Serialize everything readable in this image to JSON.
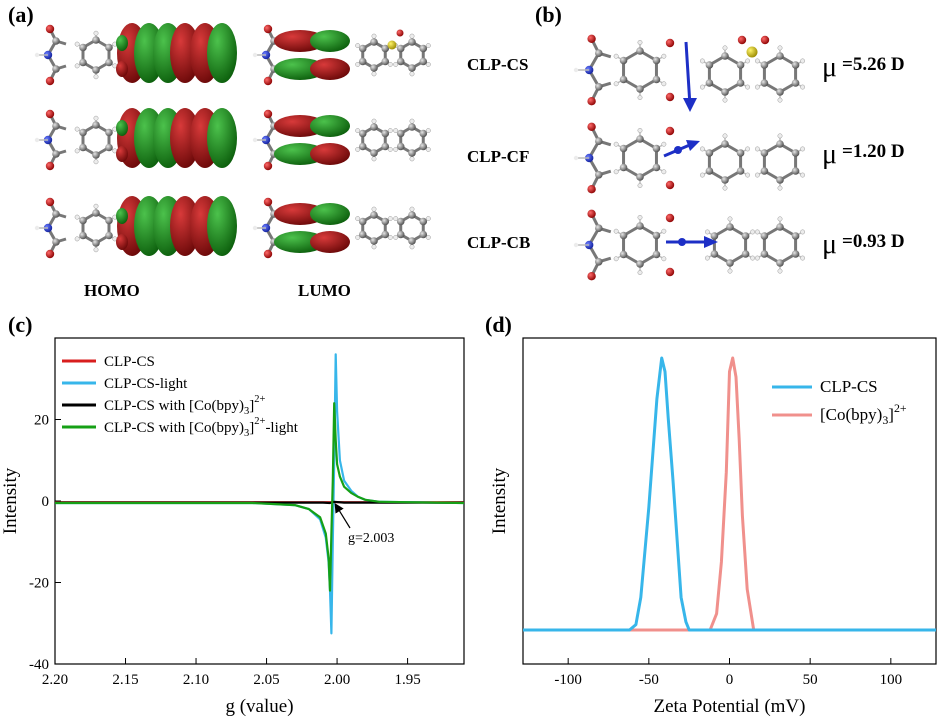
{
  "panels": {
    "a": {
      "label": "(a)",
      "col_homo": "HOMO",
      "col_lumo": "LUMO"
    },
    "b": {
      "label": "(b)",
      "rows": [
        {
          "name": "CLP-CS",
          "mu": "=5.26 D"
        },
        {
          "name": "CLP-CF",
          "mu": "=1.20 D"
        },
        {
          "name": "CLP-CB",
          "mu": "=0.93 D"
        }
      ],
      "mu_symbol": "μ"
    },
    "c": {
      "label": "(c)"
    },
    "d": {
      "label": "(d)"
    }
  },
  "colors": {
    "red": "#d81e1e",
    "lightblue": "#37b6ea",
    "black": "#000000",
    "green": "#16a016",
    "salmon": "#f0908c",
    "orbital_red": "#9a1010",
    "orbital_green": "#1e8a1e",
    "arrow_blue": "#1d2fc6"
  },
  "chart_data": [
    {
      "type": "line",
      "panel": "c",
      "xlabel": "g (value)",
      "ylabel": "Intensity",
      "xlim": [
        2.2,
        1.91
      ],
      "xreversed": true,
      "ylim": [
        -40,
        40
      ],
      "xticks": [
        2.2,
        2.15,
        2.1,
        2.05,
        2.0,
        1.95
      ],
      "xtick_labels": [
        "2.20",
        "2.15",
        "2.10",
        "2.05",
        "2.00",
        "1.95"
      ],
      "yticks": [
        -40,
        -20,
        0,
        20
      ],
      "ytick_labels": [
        "-40",
        "-20",
        "0",
        "20"
      ],
      "annotation": {
        "text": "g=2.003",
        "x": 2.003,
        "y": 0
      },
      "legend_position": "top-left",
      "series": [
        {
          "name": "CLP-CS",
          "color_key": "red",
          "x": [
            2.2,
            2.03,
            2.01,
            2.005,
            2.002,
            1.995,
            1.98,
            1.91
          ],
          "y": [
            -0.3,
            -0.3,
            -0.3,
            -0.3,
            -0.3,
            -0.3,
            -0.3,
            -0.3
          ]
        },
        {
          "name": "CLP-CS-light",
          "color_key": "lightblue",
          "x": [
            2.2,
            2.06,
            2.03,
            2.02,
            2.012,
            2.008,
            2.006,
            2.005,
            2.004,
            2.003,
            2.002,
            2.001,
            2.0,
            1.998,
            1.995,
            1.99,
            1.985,
            1.98,
            1.97,
            1.91
          ],
          "y": [
            -0.5,
            -0.5,
            -1.0,
            -2.0,
            -4.5,
            -9.0,
            -15.0,
            -22.0,
            -32.5,
            -10.0,
            10.0,
            36.0,
            22.0,
            10.0,
            5.0,
            2.5,
            1.0,
            0.3,
            -0.2,
            -0.5
          ]
        },
        {
          "name": "CLP-CS with [Co(bpy)3]2+",
          "color_key": "black",
          "x": [
            2.2,
            2.03,
            2.01,
            2.005,
            2.002,
            1.995,
            1.98,
            1.91
          ],
          "y": [
            -0.4,
            -0.4,
            -0.4,
            -0.5,
            -0.2,
            -0.4,
            -0.4,
            -0.4
          ]
        },
        {
          "name": "CLP-CS with [Co(bpy)3]2+-light",
          "color_key": "green",
          "x": [
            2.2,
            2.06,
            2.03,
            2.02,
            2.012,
            2.008,
            2.006,
            2.005,
            2.004,
            2.003,
            2.002,
            2.001,
            2.0,
            1.998,
            1.995,
            1.99,
            1.985,
            1.98,
            1.97,
            1.91
          ],
          "y": [
            -0.5,
            -0.5,
            -1.0,
            -2.0,
            -4.0,
            -8.0,
            -14.0,
            -22.0,
            -8.0,
            5.0,
            24.0,
            15.0,
            9.0,
            6.0,
            3.5,
            2.0,
            1.0,
            0.3,
            -0.2,
            -0.5
          ]
        }
      ],
      "legend": [
        {
          "text": "CLP-CS",
          "color_key": "red"
        },
        {
          "text": "CLP-CS-light",
          "color_key": "lightblue"
        },
        {
          "text": "CLP-CS with [Co(bpy)",
          "sub": "3",
          "sup": "2+",
          "tail": "",
          "color_key": "black"
        },
        {
          "text": "CLP-CS with [Co(bpy)",
          "sub": "3",
          "sup": "2+",
          "tail": "-light",
          "color_key": "green"
        }
      ]
    },
    {
      "type": "line",
      "panel": "d",
      "xlabel": "Zeta Potential (mV)",
      "ylabel": "Intensity",
      "xlim": [
        -128,
        128
      ],
      "ylim": [
        0,
        1.2
      ],
      "xticks": [
        -100,
        -50,
        0,
        50,
        100
      ],
      "xtick_labels": [
        "-100",
        "-50",
        "0",
        "50",
        "100"
      ],
      "legend_position": "top-right",
      "series": [
        {
          "name": "CLP-CS",
          "color_key": "lightblue",
          "x": [
            -128,
            -62,
            -58,
            -55,
            -50,
            -45,
            -42,
            -40,
            -38,
            -35,
            -30,
            -27,
            -25,
            -20,
            128
          ],
          "y": [
            0,
            0,
            0.02,
            0.12,
            0.45,
            0.85,
            1.0,
            0.95,
            0.78,
            0.55,
            0.12,
            0.03,
            0,
            0,
            0
          ]
        },
        {
          "name": "[Co(bpy)3]2+",
          "color_key": "salmon",
          "x": [
            -128,
            -12,
            -8,
            -5,
            -2,
            0,
            2,
            4,
            6,
            8,
            11,
            15,
            128
          ],
          "y": [
            0,
            0,
            0.06,
            0.25,
            0.58,
            0.95,
            1.0,
            0.93,
            0.7,
            0.42,
            0.15,
            0,
            0
          ]
        }
      ],
      "legend": [
        {
          "text": "CLP-CS",
          "color_key": "lightblue"
        },
        {
          "text": "[Co(bpy)",
          "sub": "3",
          "sup": "2+",
          "tail": "",
          "color_key": "salmon"
        }
      ]
    }
  ]
}
